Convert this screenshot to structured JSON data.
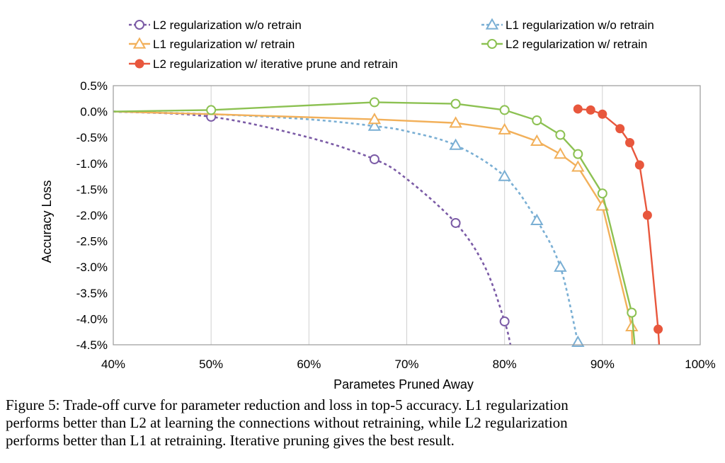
{
  "chart_data": {
    "type": "line",
    "xlabel": "Parametes Pruned Away",
    "ylabel": "Accuracy Loss",
    "xlim": [
      40,
      100
    ],
    "ylim": [
      -4.5,
      0.5
    ],
    "x_tick_values": [
      40,
      50,
      60,
      70,
      80,
      90,
      100
    ],
    "x_tick_labels": [
      "40%",
      "50%",
      "60%",
      "70%",
      "80%",
      "90%",
      "100%"
    ],
    "y_tick_values": [
      0.5,
      0.0,
      -0.5,
      -1.0,
      -1.5,
      -2.0,
      -2.5,
      -3.0,
      -3.5,
      -4.0,
      -4.5
    ],
    "y_tick_labels": [
      "0.5%",
      "0.0%",
      "-0.5%",
      "-1.0%",
      "-1.5%",
      "-2.0%",
      "-2.5%",
      "-3.0%",
      "-3.5%",
      "-4.0%",
      "-4.5%"
    ],
    "grid": "vertical",
    "legend_position": "top",
    "series": [
      {
        "name": "L2 regularization w/o retrain",
        "color": "#7b5ba6",
        "dash": true,
        "marker": "circle-open",
        "curve": [
          [
            40,
            0.0
          ],
          [
            50,
            -0.1
          ],
          [
            60,
            -0.5
          ],
          [
            66.7,
            -0.92
          ],
          [
            70,
            -1.3
          ],
          [
            75,
            -2.15
          ],
          [
            78,
            -3.0
          ],
          [
            80,
            -4.05
          ],
          [
            80.6,
            -4.5
          ]
        ],
        "points": [
          [
            50,
            -0.1
          ],
          [
            66.7,
            -0.92
          ],
          [
            75,
            -2.15
          ],
          [
            80,
            -4.05
          ]
        ]
      },
      {
        "name": "L1 regularization w/o retrain",
        "color": "#7aafd4",
        "dash": true,
        "marker": "triangle-open",
        "curve": [
          [
            40,
            0.0
          ],
          [
            50,
            -0.05
          ],
          [
            60,
            -0.15
          ],
          [
            66.7,
            -0.28
          ],
          [
            70,
            -0.38
          ],
          [
            75,
            -0.65
          ],
          [
            80,
            -1.25
          ],
          [
            83.3,
            -2.1
          ],
          [
            85.7,
            -3.0
          ],
          [
            87.5,
            -4.45
          ],
          [
            87.7,
            -4.5
          ]
        ],
        "points": [
          [
            66.7,
            -0.28
          ],
          [
            75,
            -0.65
          ],
          [
            80,
            -1.25
          ],
          [
            83.3,
            -2.1
          ],
          [
            85.7,
            -3.0
          ],
          [
            87.5,
            -4.45
          ]
        ]
      },
      {
        "name": "L1 regularization w/ retrain",
        "color": "#f2b05a",
        "dash": false,
        "marker": "triangle-open",
        "curve": [
          [
            40,
            0.0
          ],
          [
            50,
            -0.05
          ],
          [
            66.7,
            -0.15
          ],
          [
            75,
            -0.22
          ],
          [
            80,
            -0.35
          ],
          [
            83.3,
            -0.57
          ],
          [
            85.7,
            -0.82
          ],
          [
            87.5,
            -1.07
          ],
          [
            90,
            -1.82
          ],
          [
            93,
            -4.15
          ],
          [
            93.05,
            -4.5
          ]
        ],
        "points": [
          [
            66.7,
            -0.15
          ],
          [
            75,
            -0.22
          ],
          [
            80,
            -0.35
          ],
          [
            83.3,
            -0.57
          ],
          [
            85.7,
            -0.82
          ],
          [
            87.5,
            -1.07
          ],
          [
            90,
            -1.82
          ],
          [
            93,
            -4.15
          ]
        ]
      },
      {
        "name": "L2 regularization w/ retrain",
        "color": "#8cc152",
        "dash": false,
        "marker": "circle-open",
        "curve": [
          [
            40,
            0.0
          ],
          [
            50,
            0.03
          ],
          [
            66.7,
            0.18
          ],
          [
            75,
            0.15
          ],
          [
            80,
            0.03
          ],
          [
            83.3,
            -0.17
          ],
          [
            85.7,
            -0.45
          ],
          [
            87.5,
            -0.82
          ],
          [
            90,
            -1.58
          ],
          [
            93,
            -3.88
          ],
          [
            93.3,
            -4.5
          ]
        ],
        "points": [
          [
            50,
            0.03
          ],
          [
            66.7,
            0.18
          ],
          [
            75,
            0.15
          ],
          [
            80,
            0.03
          ],
          [
            83.3,
            -0.17
          ],
          [
            85.7,
            -0.45
          ],
          [
            87.5,
            -0.82
          ],
          [
            90,
            -1.58
          ],
          [
            93,
            -3.88
          ]
        ]
      },
      {
        "name": "L2 regularization w/ iterative prune and retrain",
        "color": "#e8573d",
        "dash": false,
        "marker": "circle-filled",
        "curve": [
          [
            87.5,
            0.05
          ],
          [
            88.8,
            0.03
          ],
          [
            90,
            -0.05
          ],
          [
            91.8,
            -0.33
          ],
          [
            92.8,
            -0.6
          ],
          [
            93.8,
            -1.03
          ],
          [
            94.6,
            -2.0
          ],
          [
            95.7,
            -4.2
          ],
          [
            95.8,
            -4.5
          ]
        ],
        "points": [
          [
            87.5,
            0.05
          ],
          [
            88.8,
            0.03
          ],
          [
            90,
            -0.05
          ],
          [
            91.8,
            -0.33
          ],
          [
            92.8,
            -0.6
          ],
          [
            93.8,
            -1.03
          ],
          [
            94.6,
            -2.0
          ],
          [
            95.7,
            -4.2
          ]
        ]
      }
    ]
  },
  "caption": {
    "lines": [
      "Figure 5: Trade-off curve for parameter reduction and loss in top-5 accuracy. L1 regularization",
      "performs better than L2 at learning the connections without retraining, while L2 regularization",
      "performs better than L1 at retraining. Iterative pruning gives the best result."
    ]
  }
}
